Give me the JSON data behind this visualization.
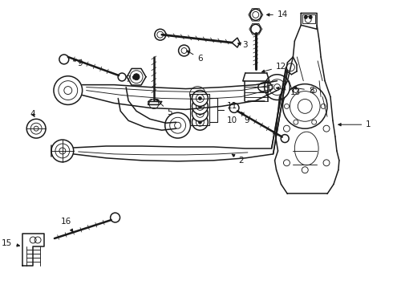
{
  "bg_color": "#ffffff",
  "line_color": "#1a1a1a",
  "fig_width": 4.9,
  "fig_height": 3.6,
  "dpi": 100,
  "xlim": [
    0,
    490
  ],
  "ylim": [
    0,
    360
  ]
}
